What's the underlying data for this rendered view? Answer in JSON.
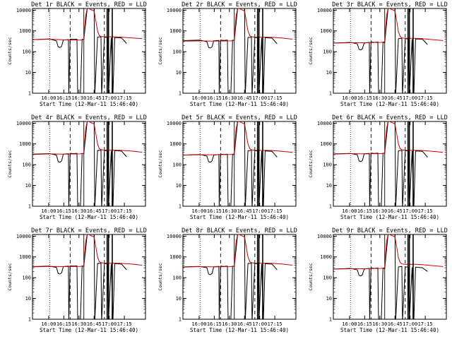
{
  "colors": {
    "background": "#ffffff",
    "axes": "#000000",
    "events": "#000000",
    "lld": "#cc0000"
  },
  "common": {
    "ylabel": "Counts/sec",
    "xlabel": "Start Time (12-Mar-11 15:46:40)",
    "x_tick_labels": [
      "16:00",
      "16:15",
      "16:30",
      "16:45",
      "17:00",
      "17:15"
    ],
    "y_tick_labels": [
      "1",
      "10",
      "100",
      "1000",
      "10000"
    ],
    "yscale": "log",
    "ylim": [
      1,
      12000
    ],
    "xlim_minutes": [
      -5,
      28
    ],
    "ref_line_dotted_minutes": [
      0
    ],
    "ref_lines_dashed_minutes": [
      6,
      16
    ],
    "ref_line_solid_minutes": [
      10
    ]
  },
  "chart_data": [
    {
      "type": "line",
      "title": "Det 1r BLACK = Events, RED = LLD",
      "series": [
        {
          "name": "Events",
          "x": [
            -5,
            0,
            2,
            2.5,
            3,
            3.5,
            4,
            5.5,
            5.6,
            6,
            7,
            8,
            8.2,
            9,
            9.5,
            10,
            11,
            13,
            13.2,
            14,
            15,
            15.2,
            16,
            17,
            17.2,
            18,
            18.5,
            19,
            21,
            22.5
          ],
          "y": [
            380,
            410,
            330,
            170,
            160,
            180,
            360,
            380,
            0.2,
            400,
            390,
            400,
            0.2,
            1,
            400,
            380,
            13000,
            13000,
            0.2,
            500,
            520,
            0.2,
            500,
            480,
            0.2,
            470,
            0.2,
            480,
            460,
            250
          ]
        },
        {
          "name": "LLD",
          "x": [
            -5,
            0,
            4,
            9,
            10,
            10.5,
            11,
            13,
            13.5,
            14,
            14.5,
            15,
            16,
            17,
            19,
            21,
            24,
            27
          ],
          "y": [
            380,
            400,
            370,
            360,
            380,
            5000,
            13000,
            9000,
            3000,
            1000,
            600,
            540,
            520,
            520,
            520,
            500,
            460,
            420
          ]
        }
      ],
      "xlabel": "Start Time (12-Mar-11 15:46:40)",
      "ylabel": "Counts/sec"
    },
    {
      "type": "line",
      "title": "Det 2r BLACK = Events, RED = LLD",
      "series": [
        {
          "name": "Events",
          "x": [
            -5,
            0,
            2,
            2.5,
            3,
            3.5,
            4,
            5.5,
            5.6,
            6,
            7,
            8,
            8.2,
            9,
            9.5,
            10,
            11,
            13,
            13.2,
            14,
            15,
            15.2,
            16,
            17,
            17.2,
            18,
            18.5,
            19,
            21,
            22.5
          ],
          "y": [
            340,
            360,
            300,
            160,
            150,
            170,
            330,
            350,
            0.2,
            360,
            350,
            360,
            0.2,
            1,
            360,
            340,
            13000,
            13000,
            0.2,
            480,
            500,
            0.2,
            480,
            470,
            0.2,
            460,
            0.2,
            470,
            450,
            240
          ]
        },
        {
          "name": "LLD",
          "x": [
            -5,
            0,
            4,
            9,
            10,
            10.5,
            11,
            13,
            13.5,
            14,
            14.5,
            15,
            16,
            17,
            19,
            21,
            24,
            27
          ],
          "y": [
            320,
            330,
            320,
            330,
            350,
            5000,
            13000,
            9000,
            3000,
            1000,
            600,
            530,
            500,
            500,
            500,
            490,
            450,
            400
          ]
        }
      ],
      "xlabel": "Start Time (12-Mar-11 15:46:40)",
      "ylabel": "Counts/sec"
    },
    {
      "type": "line",
      "title": "Det 3r BLACK = Events, RED = LLD",
      "series": [
        {
          "name": "Events",
          "x": [
            -5,
            0,
            2,
            2.5,
            3,
            3.5,
            4,
            5.5,
            5.6,
            6,
            7,
            8,
            8.2,
            9,
            9.5,
            10,
            11,
            13,
            13.2,
            14,
            15,
            15.2,
            16,
            17,
            17.2,
            18,
            18.5,
            19,
            21,
            22.5
          ],
          "y": [
            260,
            280,
            240,
            130,
            120,
            140,
            260,
            280,
            0.2,
            290,
            280,
            290,
            0.2,
            1,
            290,
            270,
            13000,
            13000,
            0.2,
            420,
            440,
            0.2,
            420,
            410,
            0.2,
            400,
            0.2,
            410,
            400,
            220
          ]
        },
        {
          "name": "LLD",
          "x": [
            -5,
            0,
            4,
            9,
            10,
            10.5,
            11,
            13,
            13.5,
            14,
            14.5,
            15,
            16,
            17,
            19,
            21,
            24,
            27
          ],
          "y": [
            260,
            270,
            270,
            280,
            300,
            5000,
            13000,
            9000,
            3000,
            900,
            550,
            460,
            440,
            440,
            440,
            420,
            380,
            340
          ]
        }
      ],
      "xlabel": "Start Time (12-Mar-11 15:46:40)",
      "ylabel": "Counts/sec"
    },
    {
      "type": "line",
      "title": "Det 4r BLACK = Events, RED = LLD",
      "series": [
        {
          "name": "Events",
          "x": [
            -5,
            0,
            2,
            2.5,
            3,
            3.5,
            4,
            5.5,
            5.6,
            6,
            7,
            8,
            8.2,
            9,
            9.5,
            10,
            11,
            13,
            13.2,
            14,
            15,
            15.2,
            16,
            17,
            17.2,
            18,
            18.5,
            19,
            21,
            22.5
          ],
          "y": [
            320,
            340,
            290,
            140,
            130,
            150,
            320,
            340,
            0.2,
            350,
            340,
            350,
            0.2,
            1,
            350,
            330,
            13000,
            13000,
            0.2,
            480,
            500,
            0.2,
            480,
            470,
            0.2,
            460,
            0.2,
            470,
            450,
            240
          ]
        },
        {
          "name": "LLD",
          "x": [
            -5,
            0,
            4,
            9,
            10,
            10.5,
            11,
            13,
            13.5,
            14,
            14.5,
            15,
            16,
            17,
            19,
            21,
            24,
            27
          ],
          "y": [
            310,
            330,
            320,
            330,
            350,
            5000,
            13000,
            9000,
            3000,
            1000,
            600,
            530,
            500,
            500,
            500,
            490,
            450,
            400
          ]
        }
      ],
      "xlabel": "Start Time (12-Mar-11 15:46:40)",
      "ylabel": "Counts/sec"
    },
    {
      "type": "line",
      "title": "Det 5r BLACK = Events, RED = LLD",
      "series": [
        {
          "name": "Events",
          "x": [
            -5,
            0,
            2,
            2.5,
            3,
            3.5,
            4,
            5.5,
            5.6,
            6,
            7,
            8,
            8.2,
            9,
            9.5,
            10,
            11,
            13,
            13.2,
            14,
            15,
            15.2,
            16,
            17,
            17.2,
            18,
            18.5,
            19,
            21,
            22.5
          ],
          "y": [
            290,
            310,
            260,
            140,
            130,
            150,
            290,
            310,
            0.2,
            320,
            310,
            320,
            0.2,
            1,
            320,
            300,
            13000,
            13000,
            0.2,
            470,
            490,
            0.2,
            470,
            460,
            0.2,
            450,
            0.2,
            460,
            440,
            230
          ]
        },
        {
          "name": "LLD",
          "x": [
            -5,
            0,
            4,
            9,
            10,
            10.5,
            11,
            13,
            13.5,
            14,
            14.5,
            15,
            16,
            17,
            19,
            21,
            24,
            27
          ],
          "y": [
            290,
            300,
            300,
            310,
            330,
            5000,
            13000,
            9000,
            3000,
            1000,
            600,
            520,
            490,
            490,
            490,
            480,
            440,
            390
          ]
        }
      ],
      "xlabel": "Start Time (12-Mar-11 15:46:40)",
      "ylabel": "Counts/sec"
    },
    {
      "type": "line",
      "title": "Det 6r BLACK = Events, RED = LLD",
      "series": [
        {
          "name": "Events",
          "x": [
            -5,
            0,
            2,
            2.5,
            3,
            3.5,
            4,
            5.5,
            5.6,
            6,
            7,
            8,
            8.2,
            9,
            9.5,
            10,
            11,
            13,
            13.2,
            14,
            15,
            15.2,
            16,
            17,
            17.2,
            18,
            18.5,
            19,
            21,
            22.5
          ],
          "y": [
            330,
            350,
            300,
            150,
            140,
            160,
            330,
            350,
            0.2,
            360,
            350,
            360,
            0.2,
            1,
            360,
            340,
            13000,
            13000,
            0.2,
            470,
            490,
            0.2,
            470,
            460,
            0.2,
            450,
            0.2,
            460,
            440,
            230
          ]
        },
        {
          "name": "LLD",
          "x": [
            -5,
            0,
            4,
            9,
            10,
            10.5,
            11,
            13,
            13.5,
            14,
            14.5,
            15,
            16,
            17,
            19,
            21,
            24,
            27
          ],
          "y": [
            320,
            340,
            330,
            340,
            360,
            5000,
            13000,
            9000,
            3000,
            1000,
            600,
            520,
            490,
            490,
            490,
            480,
            440,
            390
          ]
        }
      ],
      "xlabel": "Start Time (12-Mar-11 15:46:40)",
      "ylabel": "Counts/sec"
    },
    {
      "type": "line",
      "title": "Det 7r BLACK = Events, RED = LLD",
      "series": [
        {
          "name": "Events",
          "x": [
            -5,
            0,
            2,
            2.5,
            3,
            3.5,
            4,
            5.5,
            5.6,
            6,
            7,
            8,
            8.2,
            9,
            9.5,
            10,
            11,
            13,
            13.2,
            14,
            15,
            15.2,
            16,
            17,
            17.2,
            18,
            18.5,
            19,
            21,
            22.5
          ],
          "y": [
            340,
            360,
            310,
            160,
            150,
            170,
            340,
            360,
            0.2,
            370,
            360,
            370,
            0.2,
            1,
            370,
            350,
            13000,
            13000,
            0.2,
            480,
            500,
            0.2,
            480,
            470,
            0.2,
            460,
            0.2,
            470,
            450,
            240
          ]
        },
        {
          "name": "LLD",
          "x": [
            -5,
            0,
            4,
            9,
            10,
            10.5,
            11,
            13,
            13.5,
            14,
            14.5,
            15,
            16,
            17,
            19,
            21,
            24,
            27
          ],
          "y": [
            330,
            350,
            340,
            350,
            370,
            5000,
            13000,
            9000,
            3000,
            1000,
            600,
            530,
            500,
            500,
            500,
            490,
            450,
            400
          ]
        }
      ],
      "xlabel": "Start Time (12-Mar-11 15:46:40)",
      "ylabel": "Counts/sec"
    },
    {
      "type": "line",
      "title": "Det 8r BLACK = Events, RED = LLD",
      "series": [
        {
          "name": "Events",
          "x": [
            -5,
            0,
            2,
            2.5,
            3,
            3.5,
            4,
            5.5,
            5.6,
            6,
            7,
            8,
            8.2,
            9,
            9.5,
            10,
            11,
            13,
            13.2,
            14,
            15,
            15.2,
            16,
            17,
            17.2,
            18,
            18.5,
            19,
            21,
            22.5
          ],
          "y": [
            330,
            350,
            300,
            150,
            140,
            160,
            330,
            350,
            0.2,
            360,
            350,
            360,
            0.2,
            1,
            360,
            340,
            13000,
            13000,
            0.2,
            480,
            500,
            0.2,
            480,
            470,
            0.2,
            460,
            0.2,
            470,
            450,
            240
          ]
        },
        {
          "name": "LLD",
          "x": [
            -5,
            0,
            4,
            9,
            10,
            10.5,
            11,
            13,
            13.5,
            14,
            14.5,
            15,
            16,
            17,
            19,
            21,
            24,
            27
          ],
          "y": [
            320,
            340,
            330,
            340,
            360,
            5000,
            13000,
            9000,
            3000,
            1000,
            600,
            530,
            500,
            500,
            500,
            490,
            450,
            400
          ]
        }
      ],
      "xlabel": "Start Time (12-Mar-11 15:46:40)",
      "ylabel": "Counts/sec"
    },
    {
      "type": "line",
      "title": "Det 9r BLACK = Events, RED = LLD",
      "series": [
        {
          "name": "Events",
          "x": [
            -5,
            0,
            2,
            2.5,
            3,
            3.5,
            4,
            5.5,
            5.6,
            6,
            7,
            8,
            8.2,
            9,
            9.5,
            10,
            11,
            13,
            13.2,
            14,
            15,
            15.2,
            16,
            17,
            17.2,
            18,
            18.5,
            19,
            21,
            22.5
          ],
          "y": [
            260,
            280,
            240,
            130,
            120,
            140,
            260,
            280,
            0.2,
            290,
            280,
            290,
            0.2,
            1,
            290,
            270,
            13000,
            13000,
            0.2,
            330,
            350,
            0.2,
            330,
            320,
            0.2,
            310,
            0.2,
            320,
            300,
            200
          ]
        },
        {
          "name": "LLD",
          "x": [
            -5,
            0,
            4,
            9,
            10,
            10.5,
            11,
            13,
            13.5,
            14,
            14.5,
            15,
            16,
            17,
            19,
            21,
            24,
            27
          ],
          "y": [
            260,
            270,
            270,
            280,
            300,
            5000,
            13000,
            9000,
            3000,
            900,
            550,
            460,
            440,
            440,
            440,
            420,
            380,
            340
          ]
        }
      ],
      "xlabel": "Start Time (12-Mar-11 15:46:40)",
      "ylabel": "Counts/sec"
    }
  ]
}
